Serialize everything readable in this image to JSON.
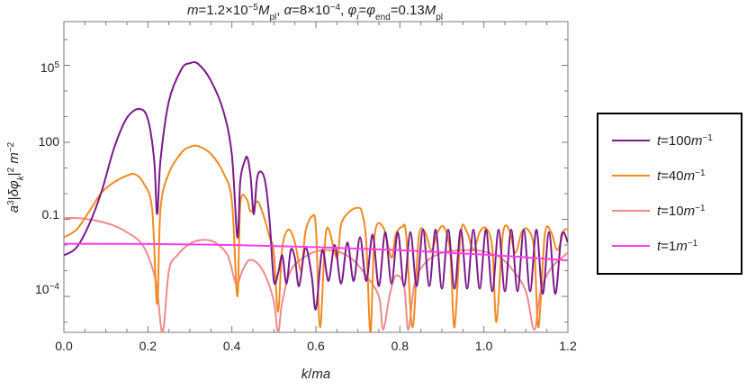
{
  "chart_data": {
    "type": "line",
    "title": "m=1.2×10⁻⁵M_pl, α=8×10⁻⁴, φ_i=φ_end=0.13M_pl",
    "title_parts": {
      "m_label": "m",
      "m_value": "=1.2×10",
      "m_exp": "−5",
      "m_unit": "M",
      "m_unit_sub": "pl",
      "alpha_label": "α",
      "alpha_value": "=8×10",
      "alpha_exp": "−4",
      "phi_label": "φ",
      "phi_i_sub": "i",
      "phi_end_sub": "end",
      "phi_value": "=0.13",
      "phi_unit": "M",
      "phi_unit_sub": "pl"
    },
    "xlabel": "k/ma",
    "ylabel": "a³|δφ_k|² m⁻²",
    "x_range": [
      0,
      1.2
    ],
    "y_range_log10": [
      -5.4,
      6.7
    ],
    "y_scale": "log",
    "x_ticks": [
      "0.0",
      "0.2",
      "0.4",
      "0.6",
      "0.8",
      "1.0",
      "1.2"
    ],
    "x_tick_values": [
      0,
      0.2,
      0.4,
      0.6,
      0.8,
      1.0,
      1.2
    ],
    "y_ticks": [
      {
        "value_log10": 5,
        "mantissa": "10",
        "exp": "5"
      },
      {
        "value_log10": 2,
        "label": "100"
      },
      {
        "value_log10": -1,
        "label": "0.1"
      },
      {
        "value_log10": -4,
        "mantissa": "10",
        "exp": "−4"
      }
    ],
    "legend_position": "right",
    "series": [
      {
        "name": "t=100m⁻¹",
        "name_parts": {
          "t": "t",
          "eq": "=100",
          "m": "m",
          "exp": "−1"
        },
        "color": "#7b1a8a",
        "points": [
          [
            0,
            -2.4
          ],
          [
            0.03,
            -2.1
          ],
          [
            0.06,
            -1.2
          ],
          [
            0.09,
            0.1
          ],
          [
            0.12,
            1.8
          ],
          [
            0.15,
            2.95
          ],
          [
            0.18,
            3.3
          ],
          [
            0.2,
            2.9
          ],
          [
            0.215,
            1.3
          ],
          [
            0.222,
            -0.8
          ],
          [
            0.23,
            1.3
          ],
          [
            0.25,
            3.6
          ],
          [
            0.28,
            4.85
          ],
          [
            0.3,
            5.08
          ],
          [
            0.32,
            5.05
          ],
          [
            0.35,
            4.4
          ],
          [
            0.38,
            3.2
          ],
          [
            0.4,
            1.5
          ],
          [
            0.413,
            -1.7
          ],
          [
            0.42,
            0.5
          ],
          [
            0.43,
            1.25
          ],
          [
            0.437,
            1.4
          ],
          [
            0.445,
            0.6
          ],
          [
            0.452,
            -0.8
          ],
          [
            0.46,
            0.6
          ],
          [
            0.47,
            0.85
          ],
          [
            0.48,
            0.4
          ],
          [
            0.49,
            -1.1
          ],
          [
            0.5,
            -3.4
          ],
          [
            0.51,
            -3.1
          ],
          [
            0.52,
            -2.4
          ],
          [
            0.53,
            -3.5
          ],
          [
            0.54,
            -2.2
          ],
          [
            0.55,
            -2.5
          ],
          [
            0.56,
            -3.6
          ],
          [
            0.575,
            -2.1
          ],
          [
            0.59,
            -3.2
          ],
          [
            0.6,
            -4.5
          ],
          [
            0.615,
            -2.2
          ],
          [
            0.63,
            -3.4
          ],
          [
            0.645,
            -2.0
          ],
          [
            0.66,
            -3.5
          ],
          [
            0.675,
            -1.9
          ],
          [
            0.69,
            -3.4
          ],
          [
            0.705,
            -1.7
          ],
          [
            0.72,
            -3.4
          ],
          [
            0.735,
            -1.6
          ],
          [
            0.75,
            -3.6
          ],
          [
            0.765,
            -1.5
          ],
          [
            0.78,
            -3.5
          ],
          [
            0.795,
            -1.5
          ],
          [
            0.81,
            -3.6
          ],
          [
            0.825,
            -1.5
          ],
          [
            0.84,
            -3.6
          ],
          [
            0.855,
            -1.4
          ],
          [
            0.87,
            -3.6
          ],
          [
            0.885,
            -1.4
          ],
          [
            0.9,
            -3.7
          ],
          [
            0.915,
            -1.4
          ],
          [
            0.93,
            -3.7
          ],
          [
            0.945,
            -1.4
          ],
          [
            0.96,
            -3.7
          ],
          [
            0.975,
            -1.4
          ],
          [
            0.99,
            -3.7
          ],
          [
            1.005,
            -1.4
          ],
          [
            1.02,
            -3.8
          ],
          [
            1.035,
            -1.4
          ],
          [
            1.05,
            -3.8
          ],
          [
            1.065,
            -1.4
          ],
          [
            1.08,
            -3.8
          ],
          [
            1.095,
            -1.4
          ],
          [
            1.11,
            -3.8
          ],
          [
            1.125,
            -1.4
          ],
          [
            1.14,
            -3.9
          ],
          [
            1.155,
            -1.5
          ],
          [
            1.17,
            -3.9
          ],
          [
            1.185,
            -1.6
          ],
          [
            1.2,
            -1.9
          ]
        ]
      },
      {
        "name": "t=40m⁻¹",
        "name_parts": {
          "t": "t",
          "eq": "=40",
          "m": "m",
          "exp": "−1"
        },
        "color": "#f28a1f",
        "points": [
          [
            0,
            -1.7
          ],
          [
            0.03,
            -1.4
          ],
          [
            0.06,
            -0.7
          ],
          [
            0.09,
            0.05
          ],
          [
            0.12,
            0.45
          ],
          [
            0.15,
            0.7
          ],
          [
            0.17,
            0.75
          ],
          [
            0.19,
            0.4
          ],
          [
            0.21,
            -0.6
          ],
          [
            0.222,
            -4.3
          ],
          [
            0.23,
            -0.6
          ],
          [
            0.25,
            0.8
          ],
          [
            0.28,
            1.6
          ],
          [
            0.3,
            1.82
          ],
          [
            0.32,
            1.85
          ],
          [
            0.35,
            1.55
          ],
          [
            0.38,
            0.8
          ],
          [
            0.4,
            -0.3
          ],
          [
            0.413,
            -4.0
          ],
          [
            0.42,
            -0.4
          ],
          [
            0.435,
            -0.2
          ],
          [
            0.445,
            -0.7
          ],
          [
            0.46,
            -0.3
          ],
          [
            0.47,
            -0.6
          ],
          [
            0.48,
            -1.1
          ],
          [
            0.49,
            -1.7
          ],
          [
            0.5,
            -2.3
          ],
          [
            0.51,
            -4.6
          ],
          [
            0.52,
            -2.1
          ],
          [
            0.535,
            -1.4
          ],
          [
            0.55,
            -1.9
          ],
          [
            0.565,
            -3.0
          ],
          [
            0.575,
            -1.5
          ],
          [
            0.59,
            -0.9
          ],
          [
            0.6,
            -1.3
          ],
          [
            0.61,
            -5.2
          ],
          [
            0.625,
            -1.4
          ],
          [
            0.65,
            -2.5
          ],
          [
            0.66,
            -1.2
          ],
          [
            0.68,
            -0.7
          ],
          [
            0.7,
            -0.55
          ],
          [
            0.71,
            -0.75
          ],
          [
            0.72,
            -1.9
          ],
          [
            0.73,
            -5.4
          ],
          [
            0.74,
            -1.6
          ],
          [
            0.76,
            -1.3
          ],
          [
            0.78,
            -2.5
          ],
          [
            0.79,
            -1.6
          ],
          [
            0.805,
            -1.3
          ],
          [
            0.815,
            -1.6
          ],
          [
            0.83,
            -5.2
          ],
          [
            0.845,
            -1.7
          ],
          [
            0.86,
            -1.5
          ],
          [
            0.875,
            -2.2
          ],
          [
            0.89,
            -1.5
          ],
          [
            0.905,
            -1.3
          ],
          [
            0.92,
            -2.3
          ],
          [
            0.93,
            -5.2
          ],
          [
            0.945,
            -1.5
          ],
          [
            0.96,
            -1.5
          ],
          [
            0.975,
            -2.2
          ],
          [
            0.99,
            -1.5
          ],
          [
            1.005,
            -1.35
          ],
          [
            1.02,
            -2.1
          ],
          [
            1.03,
            -5.0
          ],
          [
            1.045,
            -1.6
          ],
          [
            1.06,
            -1.4
          ],
          [
            1.075,
            -2.3
          ],
          [
            1.09,
            -1.5
          ],
          [
            1.105,
            -1.4
          ],
          [
            1.12,
            -2.2
          ],
          [
            1.13,
            -5.2
          ],
          [
            1.145,
            -1.6
          ],
          [
            1.16,
            -1.5
          ],
          [
            1.175,
            -2.2
          ],
          [
            1.19,
            -1.45
          ],
          [
            1.2,
            -1.4
          ]
        ]
      },
      {
        "name": "t=10m⁻¹",
        "name_parts": {
          "t": "t",
          "eq": "=10",
          "m": "m",
          "exp": "−1"
        },
        "color": "#f08a8a",
        "points": [
          [
            0,
            -0.95
          ],
          [
            0.03,
            -0.95
          ],
          [
            0.06,
            -1.0
          ],
          [
            0.09,
            -1.1
          ],
          [
            0.12,
            -1.25
          ],
          [
            0.15,
            -1.5
          ],
          [
            0.18,
            -1.85
          ],
          [
            0.2,
            -2.4
          ],
          [
            0.22,
            -3.5
          ],
          [
            0.235,
            -5.4
          ],
          [
            0.25,
            -3.0
          ],
          [
            0.27,
            -2.4
          ],
          [
            0.3,
            -1.95
          ],
          [
            0.33,
            -1.8
          ],
          [
            0.36,
            -1.9
          ],
          [
            0.39,
            -2.4
          ],
          [
            0.41,
            -3.5
          ],
          [
            0.425,
            -3.0
          ],
          [
            0.44,
            -2.6
          ],
          [
            0.46,
            -2.7
          ],
          [
            0.48,
            -3.2
          ],
          [
            0.5,
            -4.2
          ],
          [
            0.51,
            -5.4
          ],
          [
            0.52,
            -4.2
          ],
          [
            0.54,
            -3.0
          ],
          [
            0.57,
            -2.5
          ],
          [
            0.6,
            -2.25
          ],
          [
            0.63,
            -2.2
          ],
          [
            0.66,
            -2.3
          ],
          [
            0.69,
            -2.6
          ],
          [
            0.72,
            -3.2
          ],
          [
            0.75,
            -4.0
          ],
          [
            0.76,
            -5.3
          ],
          [
            0.775,
            -4.0
          ],
          [
            0.79,
            -3.2
          ],
          [
            0.81,
            -3.6
          ],
          [
            0.82,
            -5.3
          ],
          [
            0.835,
            -3.5
          ],
          [
            0.86,
            -2.7
          ],
          [
            0.9,
            -2.3
          ],
          [
            0.95,
            -2.2
          ],
          [
            1.0,
            -2.25
          ],
          [
            1.04,
            -2.5
          ],
          [
            1.07,
            -3.0
          ],
          [
            1.1,
            -3.8
          ],
          [
            1.12,
            -5.3
          ],
          [
            1.135,
            -3.8
          ],
          [
            1.16,
            -2.9
          ],
          [
            1.2,
            -2.3
          ]
        ]
      },
      {
        "name": "t=1m⁻¹",
        "name_parts": {
          "t": "t",
          "eq": "=1",
          "m": "m",
          "exp": "−1"
        },
        "color": "#ff3de8",
        "points": [
          [
            0,
            -1.95
          ],
          [
            0.2,
            -1.96
          ],
          [
            0.4,
            -2.0
          ],
          [
            0.6,
            -2.08
          ],
          [
            0.8,
            -2.2
          ],
          [
            1.0,
            -2.37
          ],
          [
            1.2,
            -2.6
          ]
        ]
      }
    ]
  }
}
